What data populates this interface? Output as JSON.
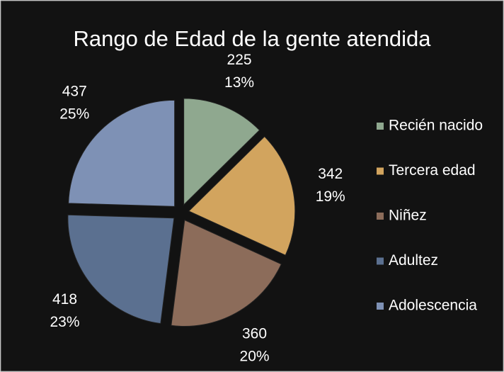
{
  "chart_data": {
    "type": "pie",
    "title": "Rango de Edad de la gente atendida",
    "categories": [
      "Recién nacido",
      "Tercera edad",
      "Niñez",
      "Adultez",
      "Adolescencia"
    ],
    "values": [
      225,
      342,
      360,
      418,
      437
    ],
    "percent_labels": [
      "13%",
      "19%",
      "20%",
      "23%",
      "25%"
    ],
    "colors": [
      "#8fa88f",
      "#d2a45e",
      "#8c6c5a",
      "#5b7090",
      "#7e91b5"
    ],
    "legend": "right"
  }
}
